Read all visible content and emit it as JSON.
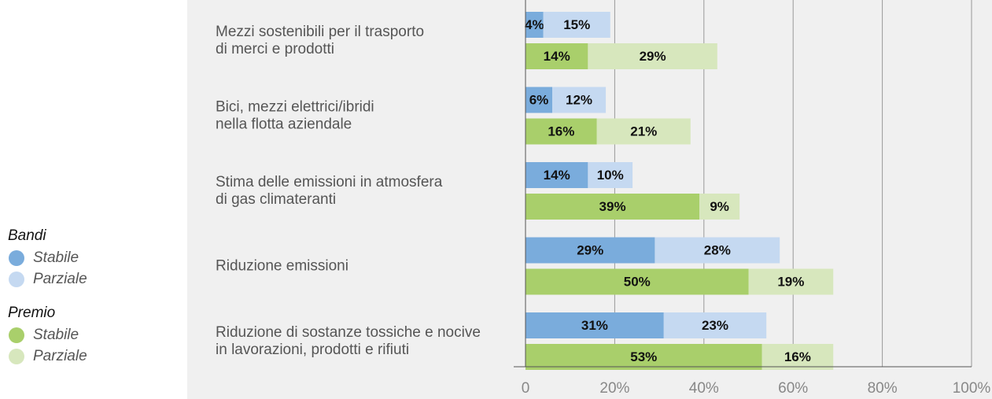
{
  "chart_data": {
    "type": "bar",
    "orientation": "horizontal",
    "stacked": true,
    "categories": [
      [
        "Mezzi sostenibili per il trasporto",
        "di merci e prodotti"
      ],
      [
        "Bici, mezzi elettrici/ibridi",
        "nella flotta aziendale"
      ],
      [
        "Stima delle emissioni in atmosfera",
        "di gas climateranti"
      ],
      [
        "Riduzione emissioni"
      ],
      [
        "Riduzione di sostanze tossiche e nocive",
        "in lavorazioni, prodotti e rifiuti"
      ]
    ],
    "groups": [
      {
        "name": "Bandi",
        "series": [
          {
            "name": "Stabile",
            "color": "#7aacdc",
            "values": [
              4,
              6,
              14,
              29,
              31
            ],
            "value_labels": [
              "4%",
              "6%",
              "14%",
              "29%",
              "31%"
            ]
          },
          {
            "name": "Parziale",
            "color": "#c5d9f1",
            "values": [
              15,
              12,
              10,
              28,
              23
            ],
            "value_labels": [
              "15%",
              "12%",
              "10%",
              "28%",
              "23%"
            ]
          }
        ]
      },
      {
        "name": "Premio",
        "series": [
          {
            "name": "Stabile",
            "color": "#a9cf6b",
            "values": [
              14,
              16,
              39,
              50,
              53
            ],
            "value_labels": [
              "14%",
              "16%",
              "39%",
              "50%",
              "53%"
            ]
          },
          {
            "name": "Parziale",
            "color": "#d7e7bd",
            "values": [
              29,
              21,
              9,
              19,
              16
            ],
            "value_labels": [
              "29%",
              "21%",
              "9%",
              "19%",
              "16%"
            ]
          }
        ]
      }
    ],
    "xlim": [
      0,
      100
    ],
    "xticks": [
      0,
      {
        "value": 20,
        "label": "20%"
      },
      {
        "value": 40,
        "label": "40%"
      },
      {
        "value": 60,
        "label": "60%"
      },
      {
        "value": 80,
        "label": "80%"
      },
      {
        "value": 100,
        "label": "100%"
      }
    ],
    "grid": true
  }
}
